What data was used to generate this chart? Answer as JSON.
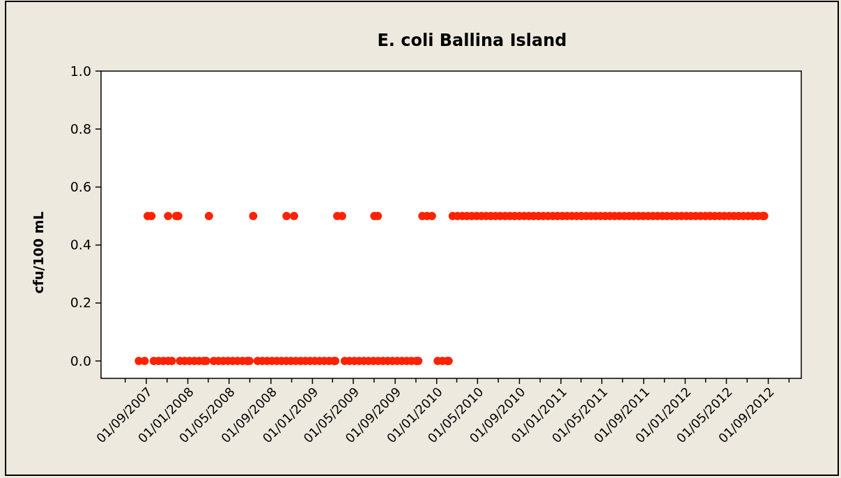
{
  "chart_data": {
    "type": "scatter",
    "title": "E. coli Ballina Island",
    "ylabel": "cfu/100 mL",
    "marker": "circle",
    "grid": false,
    "xlim": [
      "2007-04-21",
      "2012-12-07"
    ],
    "xticks": [
      {
        "value": "2007-07-01",
        "label": null
      },
      {
        "value": "2007-09-01",
        "label": "01/09/2007"
      },
      {
        "value": "2007-11-01",
        "label": null
      },
      {
        "value": "2008-01-01",
        "label": "01/01/2008"
      },
      {
        "value": "2008-03-01",
        "label": null
      },
      {
        "value": "2008-05-01",
        "label": "01/05/2008"
      },
      {
        "value": "2008-07-01",
        "label": null
      },
      {
        "value": "2008-09-01",
        "label": "01/09/2008"
      },
      {
        "value": "2008-11-01",
        "label": null
      },
      {
        "value": "2009-01-01",
        "label": "01/01/2009"
      },
      {
        "value": "2009-03-01",
        "label": null
      },
      {
        "value": "2009-05-01",
        "label": "01/05/2009"
      },
      {
        "value": "2009-07-01",
        "label": null
      },
      {
        "value": "2009-09-01",
        "label": "01/09/2009"
      },
      {
        "value": "2009-11-01",
        "label": null
      },
      {
        "value": "2010-01-01",
        "label": "01/01/2010"
      },
      {
        "value": "2010-03-01",
        "label": null
      },
      {
        "value": "2010-05-01",
        "label": "01/05/2010"
      },
      {
        "value": "2010-07-01",
        "label": null
      },
      {
        "value": "2010-09-01",
        "label": "01/09/2010"
      },
      {
        "value": "2010-11-01",
        "label": null
      },
      {
        "value": "2011-01-01",
        "label": "01/01/2011"
      },
      {
        "value": "2011-03-01",
        "label": null
      },
      {
        "value": "2011-05-01",
        "label": "01/05/2011"
      },
      {
        "value": "2011-07-01",
        "label": null
      },
      {
        "value": "2011-09-01",
        "label": "01/09/2011"
      },
      {
        "value": "2011-11-01",
        "label": null
      },
      {
        "value": "2012-01-01",
        "label": "01/01/2012"
      },
      {
        "value": "2012-03-01",
        "label": null
      },
      {
        "value": "2012-05-01",
        "label": "01/05/2012"
      },
      {
        "value": "2012-07-01",
        "label": null
      },
      {
        "value": "2012-09-01",
        "label": "01/09/2012"
      },
      {
        "value": "2012-11-01",
        "label": null
      }
    ],
    "ylim": [
      -0.06,
      1.0
    ],
    "yticks": [
      {
        "value": 0,
        "label": "0.0"
      },
      {
        "value": 0.2,
        "label": "0.2"
      },
      {
        "value": 0.4,
        "label": "0.4"
      },
      {
        "value": 0.6,
        "label": "0.6"
      },
      {
        "value": 0.8,
        "label": "0.8"
      },
      {
        "value": 1.0,
        "label": "1.0"
      }
    ],
    "series": [
      {
        "color": "#ff2200",
        "x": [
          "2007-08-10",
          "2007-08-27",
          "2007-09-23",
          "2007-10-07",
          "2007-10-21",
          "2007-11-04",
          "2007-11-15",
          "2007-12-09",
          "2007-12-23",
          "2008-01-06",
          "2008-01-20",
          "2008-02-03",
          "2008-02-17",
          "2008-02-24",
          "2008-03-17",
          "2008-03-31",
          "2008-04-14",
          "2008-04-28",
          "2008-05-12",
          "2008-05-26",
          "2008-06-09",
          "2008-06-23",
          "2008-06-30",
          "2008-07-24",
          "2008-08-07",
          "2008-08-21",
          "2008-09-04",
          "2008-09-18",
          "2008-10-02",
          "2008-10-16",
          "2008-10-30",
          "2008-11-13",
          "2008-11-27",
          "2008-12-11",
          "2008-12-25",
          "2009-01-08",
          "2009-01-22",
          "2009-02-05",
          "2009-02-19",
          "2009-03-05",
          "2009-03-09",
          "2009-04-06",
          "2009-04-20",
          "2009-05-04",
          "2009-05-18",
          "2009-06-01",
          "2009-06-15",
          "2009-06-29",
          "2009-07-13",
          "2009-07-27",
          "2009-08-10",
          "2009-08-24",
          "2009-09-07",
          "2009-09-21",
          "2009-10-05",
          "2009-10-19",
          "2009-11-02",
          "2009-11-08",
          "2010-01-04",
          "2010-01-18",
          "2010-02-01",
          "2010-02-05"
        ],
        "values": [
          0,
          0,
          0,
          0,
          0,
          0,
          0,
          0,
          0,
          0,
          0,
          0,
          0,
          0,
          0,
          0,
          0,
          0,
          0,
          0,
          0,
          0,
          0,
          0,
          0,
          0,
          0,
          0,
          0,
          0,
          0,
          0,
          0,
          0,
          0,
          0,
          0,
          0,
          0,
          0,
          0,
          0,
          0,
          0,
          0,
          0,
          0,
          0,
          0,
          0,
          0,
          0,
          0,
          0,
          0,
          0,
          0,
          0,
          0,
          0,
          0,
          0
        ]
      },
      {
        "color": "#ff2200",
        "x": [
          "2007-09-05",
          "2007-09-16",
          "2007-11-04",
          "2007-11-28",
          "2007-12-04",
          "2008-03-03",
          "2008-07-11",
          "2008-10-17",
          "2008-11-08",
          "2009-03-15",
          "2009-03-29",
          "2009-07-02",
          "2009-07-12",
          "2009-11-20",
          "2009-12-04",
          "2009-12-18",
          "2010-02-17",
          "2010-03-03",
          "2010-03-17",
          "2010-03-31",
          "2010-04-14",
          "2010-04-28",
          "2010-05-12",
          "2010-05-26",
          "2010-06-09",
          "2010-06-23",
          "2010-07-07",
          "2010-07-21",
          "2010-08-04",
          "2010-08-18",
          "2010-09-01",
          "2010-09-15",
          "2010-09-29",
          "2010-10-13",
          "2010-10-27",
          "2010-11-10",
          "2010-11-24",
          "2010-12-08",
          "2010-12-22",
          "2011-01-05",
          "2011-01-19",
          "2011-02-02",
          "2011-02-16",
          "2011-03-02",
          "2011-03-16",
          "2011-03-30",
          "2011-04-13",
          "2011-04-27",
          "2011-05-11",
          "2011-05-25",
          "2011-06-08",
          "2011-06-22",
          "2011-07-06",
          "2011-07-20",
          "2011-08-03",
          "2011-08-17",
          "2011-08-31",
          "2011-09-14",
          "2011-09-28",
          "2011-10-12",
          "2011-10-26",
          "2011-11-09",
          "2011-11-23",
          "2011-12-07",
          "2011-12-21",
          "2012-01-04",
          "2012-01-18",
          "2012-02-01",
          "2012-02-15",
          "2012-02-29",
          "2012-03-14",
          "2012-03-28",
          "2012-04-11",
          "2012-04-25",
          "2012-05-09",
          "2012-05-23",
          "2012-06-06",
          "2012-06-20",
          "2012-07-04",
          "2012-07-18",
          "2012-08-01",
          "2012-08-15",
          "2012-08-20"
        ],
        "values": [
          0.5,
          0.5,
          0.5,
          0.5,
          0.5,
          0.5,
          0.5,
          0.5,
          0.5,
          0.5,
          0.5,
          0.5,
          0.5,
          0.5,
          0.5,
          0.5,
          0.5,
          0.5,
          0.5,
          0.5,
          0.5,
          0.5,
          0.5,
          0.5,
          0.5,
          0.5,
          0.5,
          0.5,
          0.5,
          0.5,
          0.5,
          0.5,
          0.5,
          0.5,
          0.5,
          0.5,
          0.5,
          0.5,
          0.5,
          0.5,
          0.5,
          0.5,
          0.5,
          0.5,
          0.5,
          0.5,
          0.5,
          0.5,
          0.5,
          0.5,
          0.5,
          0.5,
          0.5,
          0.5,
          0.5,
          0.5,
          0.5,
          0.5,
          0.5,
          0.5,
          0.5,
          0.5,
          0.5,
          0.5,
          0.5,
          0.5,
          0.5,
          0.5,
          0.5,
          0.5,
          0.5,
          0.5,
          0.5,
          0.5,
          0.5,
          0.5,
          0.5,
          0.5,
          0.5,
          0.5,
          0.5,
          0.5,
          0.5
        ]
      }
    ]
  }
}
